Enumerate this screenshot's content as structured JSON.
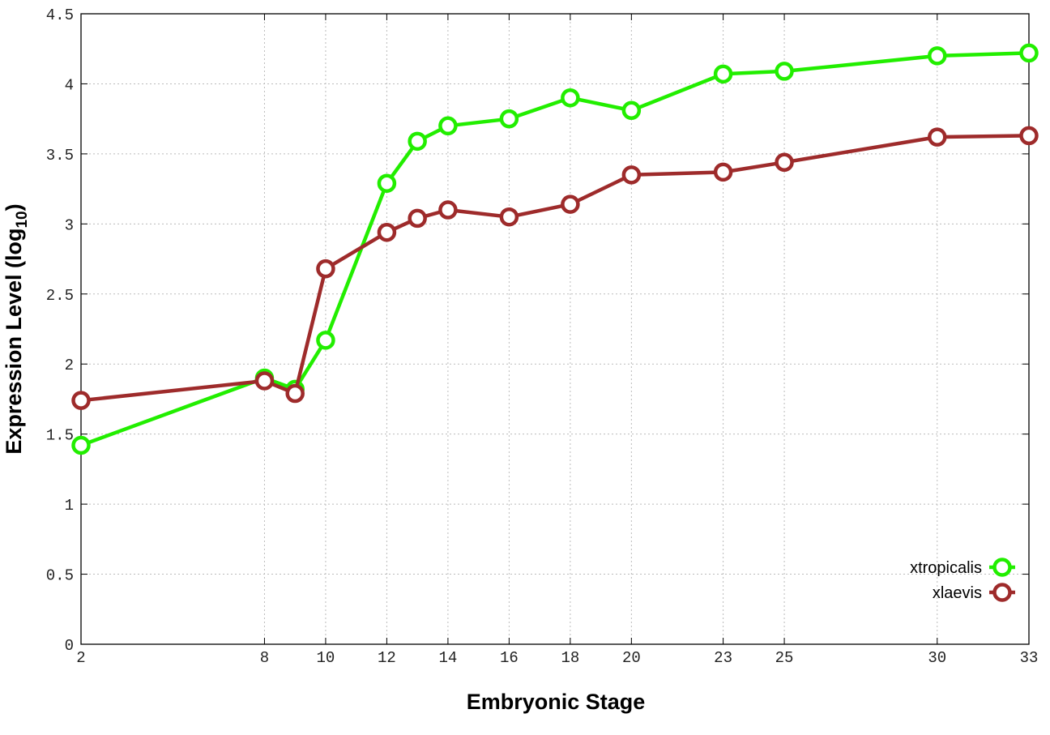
{
  "chart_data": {
    "type": "line",
    "xlabel": "Embryonic Stage",
    "ylabel": "Expression Level (log",
    "ylabel_sub": "10",
    "ylabel_end": ")",
    "xlim": [
      2,
      33
    ],
    "ylim": [
      0,
      4.5
    ],
    "xticks": [
      2,
      8,
      10,
      12,
      14,
      16,
      18,
      20,
      23,
      25,
      30,
      33
    ],
    "yticks": [
      0,
      0.5,
      1,
      1.5,
      2,
      2.5,
      3,
      3.5,
      4,
      4.5
    ],
    "xtick_labels": [
      "2",
      "8",
      "10",
      "12",
      "14",
      "16",
      "18",
      "20",
      "23",
      "25",
      "30",
      "33"
    ],
    "ytick_labels": [
      "0",
      "0.5",
      "1",
      "1.5",
      "2",
      "2.5",
      "3",
      "3.5",
      "4",
      "4.5"
    ],
    "grid": true,
    "legend_position": "bottom-right",
    "series": [
      {
        "name": "xtropicalis",
        "color": "#22ee00",
        "x": [
          2,
          8,
          9,
          10,
          12,
          13,
          14,
          16,
          18,
          20,
          23,
          25,
          30,
          33
        ],
        "y": [
          1.42,
          1.9,
          1.82,
          2.17,
          3.29,
          3.59,
          3.7,
          3.75,
          3.9,
          3.81,
          4.07,
          4.09,
          4.2,
          4.22
        ]
      },
      {
        "name": "xlaevis",
        "color": "#9e2b2b",
        "x": [
          2,
          8,
          9,
          10,
          12,
          13,
          14,
          16,
          18,
          20,
          23,
          25,
          30,
          33
        ],
        "y": [
          1.74,
          1.88,
          1.79,
          2.68,
          2.94,
          3.04,
          3.1,
          3.05,
          3.14,
          3.35,
          3.37,
          3.44,
          3.62,
          3.63
        ]
      }
    ]
  }
}
